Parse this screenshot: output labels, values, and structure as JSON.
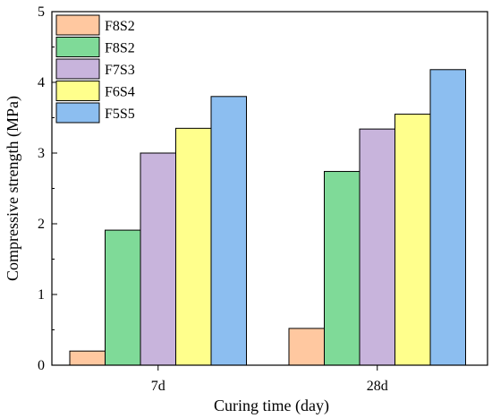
{
  "chart_data": {
    "type": "bar",
    "title": "",
    "xlabel": "Curing time (day)",
    "ylabel": "Compressive strength (MPa)",
    "ylim": [
      0,
      5
    ],
    "yticks": [
      "0",
      "1",
      "2",
      "3",
      "4",
      "5"
    ],
    "categories": [
      "7d",
      "28d"
    ],
    "series": [
      {
        "name": "F8S2",
        "color": "#FFC8A0",
        "values": [
          0.2,
          0.52
        ]
      },
      {
        "name": "F8S2",
        "color": "#7FDA98",
        "values": [
          1.91,
          2.74
        ]
      },
      {
        "name": "F7S3",
        "color": "#C8B4DC",
        "values": [
          3.0,
          3.34
        ]
      },
      {
        "name": "F6S4",
        "color": "#FFFF8C",
        "values": [
          3.35,
          3.55
        ]
      },
      {
        "name": "F5S5",
        "color": "#8CBEF0",
        "values": [
          3.8,
          4.18
        ]
      }
    ],
    "legend_position": "top-left",
    "grid": false
  }
}
